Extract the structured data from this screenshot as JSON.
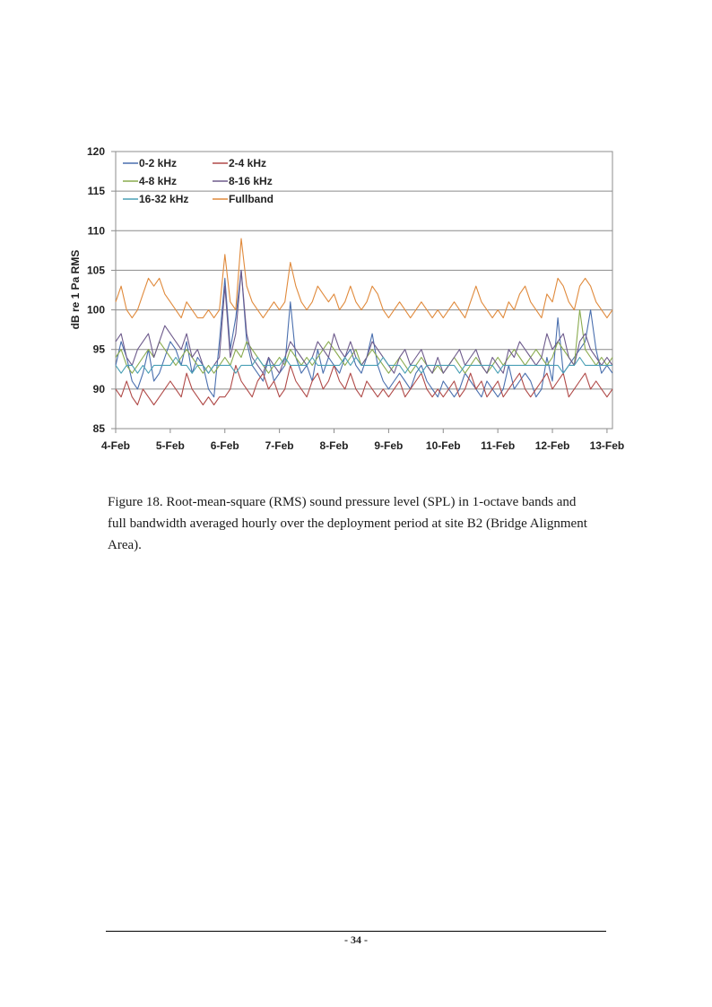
{
  "figure": {
    "caption": "Figure 18. Root-mean-square (RMS) sound pressure level (SPL) in 1-octave bands and full bandwidth averaged hourly over the deployment period at site B2 (Bridge Alignment Area)."
  },
  "footer": {
    "page_number": "- 34 -"
  },
  "chart_data": {
    "type": "line",
    "title": "",
    "xlabel": "",
    "ylabel": "dB re 1 Pa RMS",
    "ylim": [
      85,
      120
    ],
    "yticks": [
      85,
      90,
      95,
      100,
      105,
      110,
      115,
      120
    ],
    "xlim": [
      0,
      9.1
    ],
    "x_tick_labels": [
      "4-Feb",
      "5-Feb",
      "6-Feb",
      "7-Feb",
      "8-Feb",
      "9-Feb",
      "10-Feb",
      "11-Feb",
      "12-Feb",
      "13-Feb"
    ],
    "x_tick_values": [
      0,
      1,
      2,
      3,
      4,
      5,
      6,
      7,
      8,
      9
    ],
    "grid": "horizontal",
    "legend_position": "top-left",
    "x": [
      0.0,
      0.1,
      0.2,
      0.3,
      0.4,
      0.5,
      0.6,
      0.7,
      0.8,
      0.9,
      1.0,
      1.1,
      1.2,
      1.3,
      1.4,
      1.5,
      1.6,
      1.7,
      1.8,
      1.9,
      2.0,
      2.1,
      2.2,
      2.3,
      2.4,
      2.5,
      2.6,
      2.7,
      2.8,
      2.9,
      3.0,
      3.1,
      3.2,
      3.3,
      3.4,
      3.5,
      3.6,
      3.7,
      3.8,
      3.9,
      4.0,
      4.1,
      4.2,
      4.3,
      4.4,
      4.5,
      4.6,
      4.7,
      4.8,
      4.9,
      5.0,
      5.1,
      5.2,
      5.3,
      5.4,
      5.5,
      5.6,
      5.7,
      5.8,
      5.9,
      6.0,
      6.1,
      6.2,
      6.3,
      6.4,
      6.5,
      6.6,
      6.7,
      6.8,
      6.9,
      7.0,
      7.1,
      7.2,
      7.3,
      7.4,
      7.5,
      7.6,
      7.7,
      7.8,
      7.9,
      8.0,
      8.1,
      8.2,
      8.3,
      8.4,
      8.5,
      8.6,
      8.7,
      8.8,
      8.9,
      9.0,
      9.1
    ],
    "series": [
      {
        "name": "0-2 kHz",
        "color": "#4a6fae",
        "values": [
          93,
          96,
          94,
          91,
          90,
          92,
          95,
          91,
          92,
          94,
          96,
          95,
          93,
          96,
          92,
          94,
          93,
          90,
          89,
          96,
          104,
          95,
          99,
          105,
          96,
          93,
          92,
          91,
          94,
          91,
          92,
          93,
          101,
          94,
          92,
          93,
          91,
          95,
          92,
          94,
          93,
          92,
          94,
          95,
          93,
          92,
          94,
          97,
          93,
          91,
          90,
          91,
          92,
          91,
          90,
          92,
          93,
          91,
          90,
          89,
          91,
          90,
          89,
          90,
          92,
          91,
          90,
          89,
          91,
          90,
          89,
          90,
          93,
          90,
          91,
          92,
          91,
          89,
          90,
          94,
          91,
          99,
          92,
          93,
          94,
          95,
          96,
          100,
          95,
          92,
          93,
          92
        ]
      },
      {
        "name": "2-4 kHz",
        "color": "#b04a48",
        "values": [
          90,
          89,
          91,
          89,
          88,
          90,
          89,
          88,
          89,
          90,
          91,
          90,
          89,
          92,
          90,
          89,
          88,
          89,
          88,
          89,
          89,
          90,
          93,
          91,
          90,
          89,
          91,
          92,
          90,
          91,
          89,
          90,
          93,
          91,
          90,
          89,
          91,
          92,
          90,
          91,
          93,
          91,
          90,
          92,
          90,
          89,
          91,
          90,
          89,
          90,
          89,
          90,
          91,
          89,
          90,
          91,
          92,
          90,
          89,
          90,
          89,
          90,
          91,
          89,
          90,
          92,
          90,
          91,
          89,
          90,
          91,
          89,
          90,
          91,
          92,
          90,
          89,
          90,
          91,
          92,
          90,
          91,
          92,
          89,
          90,
          91,
          92,
          90,
          91,
          90,
          89,
          90
        ]
      },
      {
        "name": "4-8 kHz",
        "color": "#8aab4f",
        "values": [
          94,
          95,
          93,
          92,
          93,
          94,
          95,
          94,
          96,
          95,
          94,
          93,
          94,
          95,
          94,
          93,
          92,
          93,
          92,
          93,
          94,
          93,
          95,
          94,
          96,
          95,
          94,
          93,
          92,
          93,
          94,
          93,
          95,
          94,
          93,
          94,
          93,
          94,
          95,
          96,
          95,
          94,
          93,
          94,
          95,
          93,
          94,
          95,
          94,
          93,
          92,
          93,
          94,
          93,
          92,
          93,
          94,
          93,
          92,
          93,
          92,
          93,
          94,
          93,
          92,
          93,
          94,
          93,
          92,
          93,
          94,
          93,
          94,
          95,
          94,
          93,
          94,
          95,
          94,
          93,
          94,
          96,
          95,
          94,
          93,
          100,
          95,
          94,
          93,
          94,
          93,
          94
        ]
      },
      {
        "name": "8-16 kHz",
        "color": "#6e5b8c",
        "values": [
          96,
          97,
          94,
          93,
          95,
          96,
          97,
          94,
          96,
          98,
          97,
          96,
          95,
          97,
          94,
          95,
          93,
          92,
          93,
          94,
          103,
          94,
          97,
          105,
          97,
          94,
          93,
          92,
          94,
          93,
          92,
          94,
          96,
          95,
          94,
          93,
          94,
          96,
          95,
          94,
          97,
          95,
          94,
          96,
          94,
          93,
          94,
          96,
          95,
          94,
          93,
          92,
          94,
          95,
          93,
          94,
          95,
          93,
          92,
          94,
          92,
          93,
          94,
          95,
          93,
          94,
          95,
          93,
          92,
          94,
          93,
          92,
          95,
          94,
          96,
          95,
          94,
          93,
          94,
          97,
          95,
          96,
          97,
          94,
          93,
          96,
          97,
          95,
          94,
          93,
          94,
          93
        ]
      },
      {
        "name": "16-32 kHz",
        "color": "#4aa0b5",
        "values": [
          93,
          92,
          93,
          93,
          92,
          93,
          92,
          93,
          93,
          93,
          93,
          94,
          93,
          93,
          92,
          93,
          93,
          92,
          93,
          93,
          93,
          93,
          92,
          93,
          93,
          93,
          94,
          93,
          93,
          93,
          93,
          94,
          93,
          93,
          93,
          93,
          94,
          93,
          93,
          93,
          93,
          93,
          94,
          93,
          94,
          93,
          93,
          93,
          93,
          94,
          93,
          93,
          93,
          92,
          93,
          93,
          92,
          93,
          93,
          93,
          93,
          93,
          93,
          92,
          93,
          93,
          93,
          93,
          93,
          93,
          92,
          93,
          93,
          93,
          93,
          93,
          93,
          93,
          93,
          93,
          93,
          93,
          92,
          93,
          93,
          94,
          93,
          93,
          93,
          93,
          93,
          93
        ]
      },
      {
        "name": "Fullband",
        "color": "#e08a3c",
        "values": [
          101,
          103,
          100,
          99,
          100,
          102,
          104,
          103,
          104,
          102,
          101,
          100,
          99,
          101,
          100,
          99,
          99,
          100,
          99,
          100,
          107,
          101,
          100,
          109,
          103,
          101,
          100,
          99,
          100,
          101,
          100,
          101,
          106,
          103,
          101,
          100,
          101,
          103,
          102,
          101,
          102,
          100,
          101,
          103,
          101,
          100,
          101,
          103,
          102,
          100,
          99,
          100,
          101,
          100,
          99,
          100,
          101,
          100,
          99,
          100,
          99,
          100,
          101,
          100,
          99,
          101,
          103,
          101,
          100,
          99,
          100,
          99,
          101,
          100,
          102,
          103,
          101,
          100,
          99,
          102,
          101,
          104,
          103,
          101,
          100,
          103,
          104,
          103,
          101,
          100,
          99,
          100
        ]
      }
    ]
  }
}
